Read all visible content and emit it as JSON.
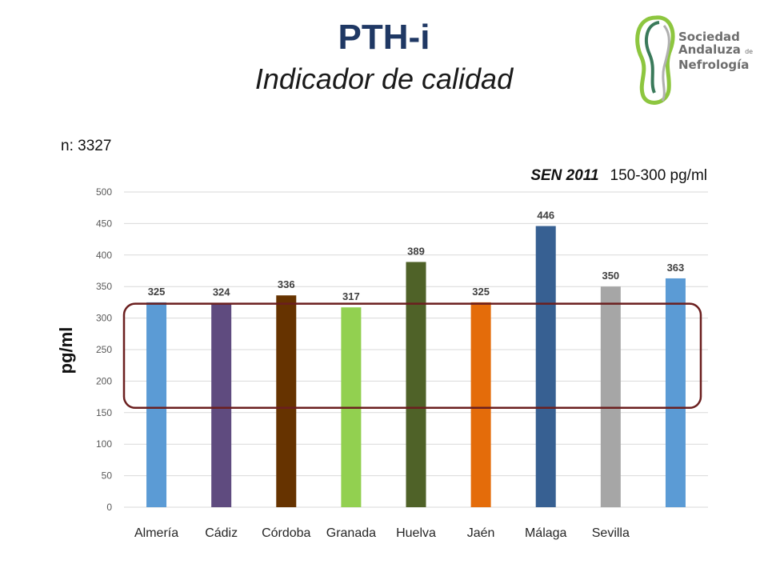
{
  "slide": {
    "title": "PTH-i",
    "subtitle": "Indicador de calidad",
    "sample_size": "n: 3327",
    "reference_source": "SEN 2011",
    "reference_range": "150-300 pg/ml"
  },
  "logo": {
    "line1": "Sociedad",
    "line2": "Andaluza",
    "line2_suffix": "de",
    "line3": "Nefrología",
    "colors": [
      "#8dc63f",
      "#3a7a5a",
      "#b0b0b0"
    ]
  },
  "chart_data": {
    "type": "bar",
    "title": "",
    "xlabel": "",
    "ylabel": "pg/ml",
    "ylim": [
      0,
      500
    ],
    "yticks": [
      0,
      50,
      100,
      150,
      200,
      250,
      300,
      350,
      400,
      450,
      500
    ],
    "grid": true,
    "categories": [
      "Almería",
      "Cádiz",
      "Córdoba",
      "Granada",
      "Huelva",
      "Jaén",
      "Málaga",
      "Sevilla",
      ""
    ],
    "values": [
      325,
      324,
      336,
      317,
      389,
      325,
      446,
      350,
      363
    ],
    "colors": [
      "#5b9bd5",
      "#5f4b7f",
      "#663300",
      "#92d050",
      "#4f6228",
      "#e46c0a",
      "#376092",
      "#a6a6a6",
      "#5b9bd5"
    ],
    "highlight_range": [
      150,
      300
    ],
    "highlight_color": "#6b1f1f"
  }
}
